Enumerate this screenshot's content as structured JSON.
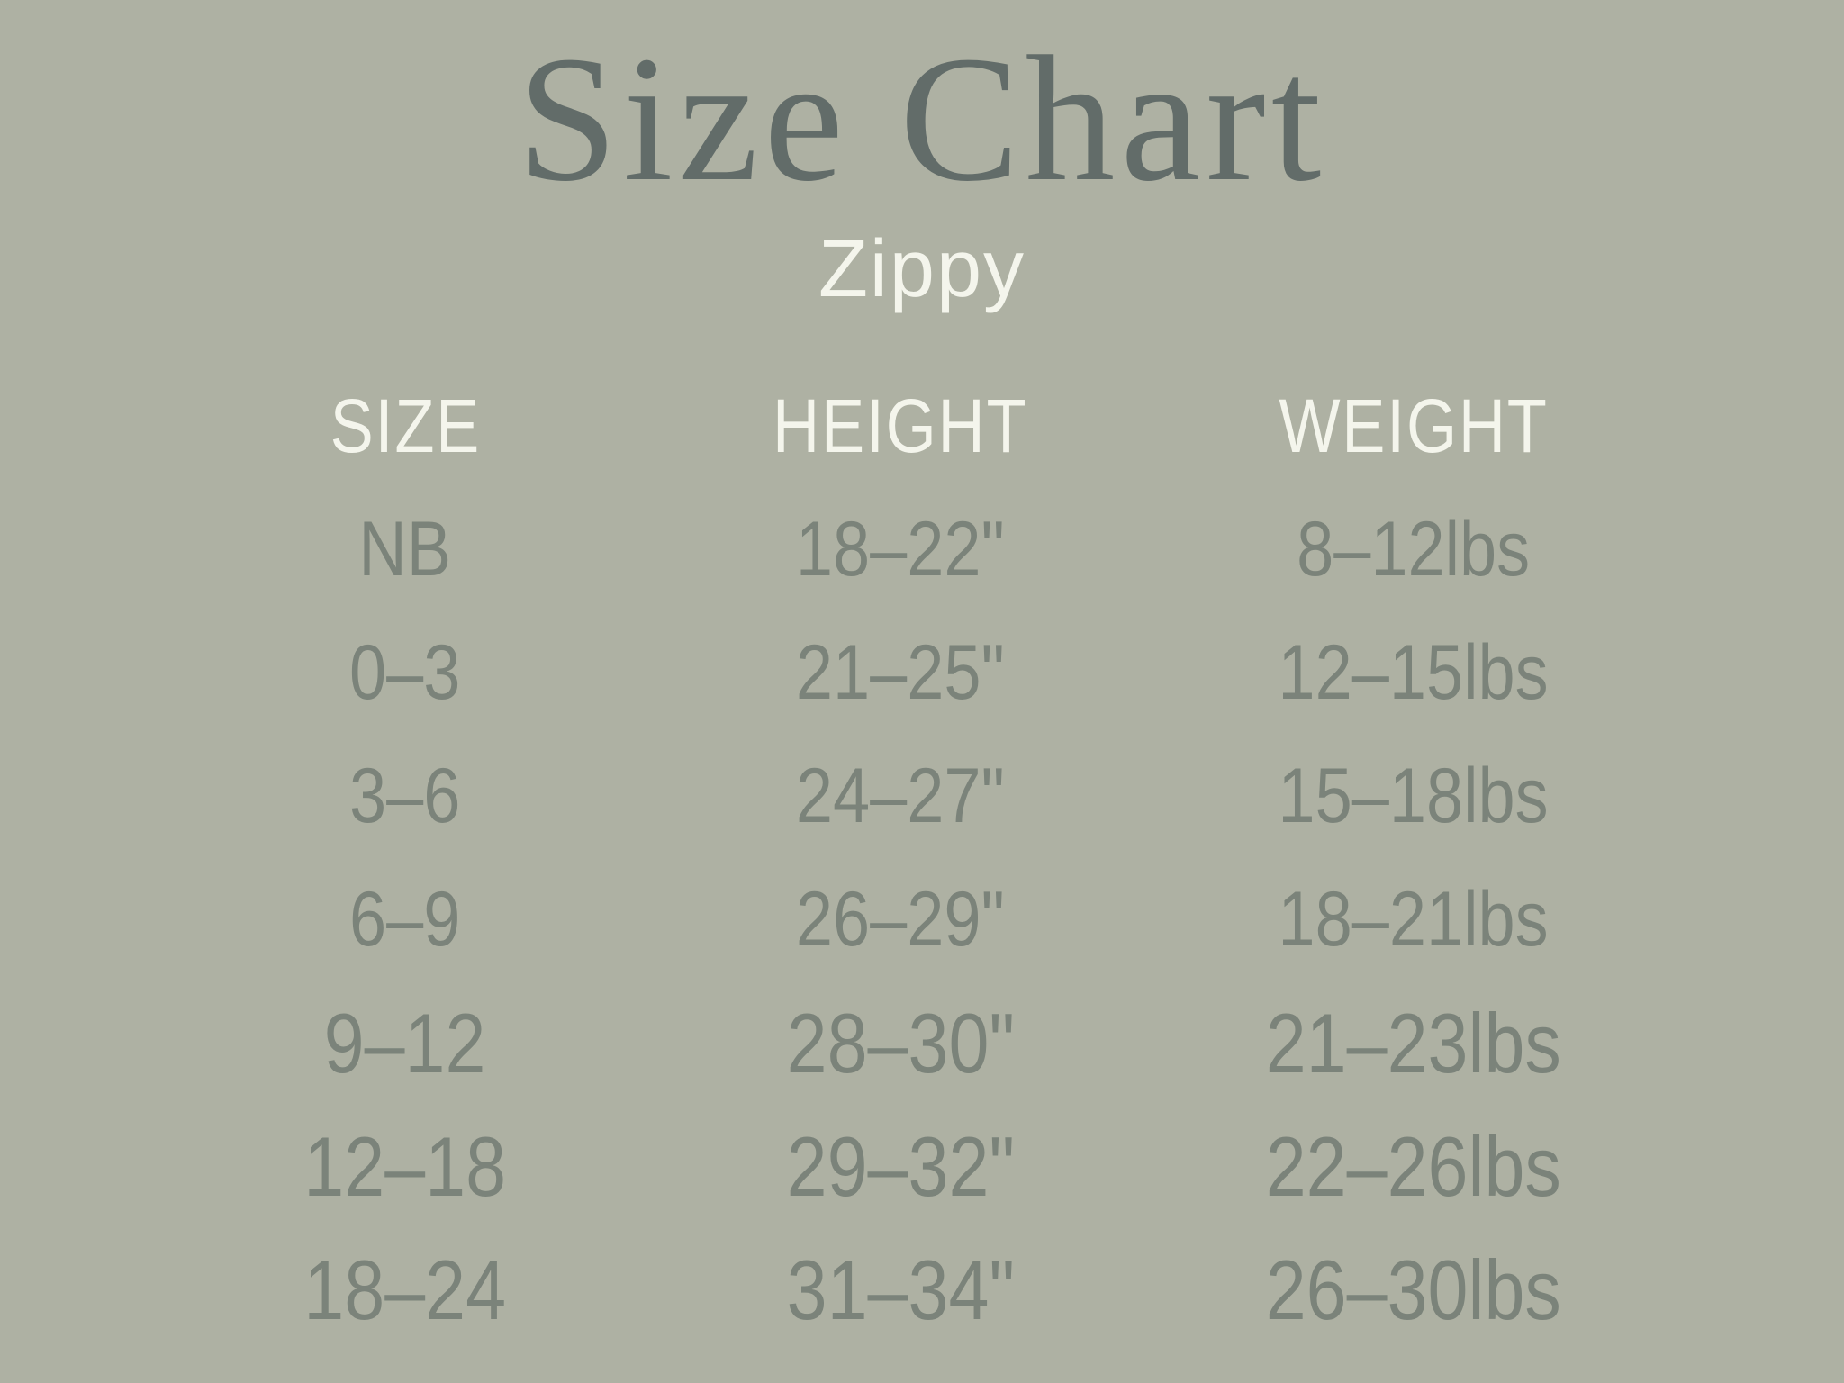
{
  "page": {
    "title": "Size Chart",
    "subtitle": "Zippy"
  },
  "colors": {
    "background": "#aeb1a3",
    "title_text": "#626c69",
    "header_text": "#f4f5ec",
    "row_text": "#7b837a"
  },
  "chart_data": {
    "type": "table",
    "title": "Size Chart",
    "subtitle": "Zippy",
    "columns": [
      "SIZE",
      "HEIGHT",
      "WEIGHT"
    ],
    "rows": [
      [
        "NB",
        "18–22\"",
        "8–12lbs"
      ],
      [
        "0–3",
        "21–25\"",
        "12–15lbs"
      ],
      [
        "3–6",
        "24–27\"",
        "15–18lbs"
      ],
      [
        "6–9",
        "26–29\"",
        "18–21lbs"
      ],
      [
        "9–12",
        "28–30\"",
        "21–23lbs"
      ],
      [
        "12–18",
        "29–32\"",
        "22–26lbs"
      ],
      [
        "18–24",
        "31–34\"",
        "26–30lbs"
      ]
    ],
    "layout": {
      "legend": "none",
      "grid": "off",
      "column_alignment": "center"
    }
  }
}
